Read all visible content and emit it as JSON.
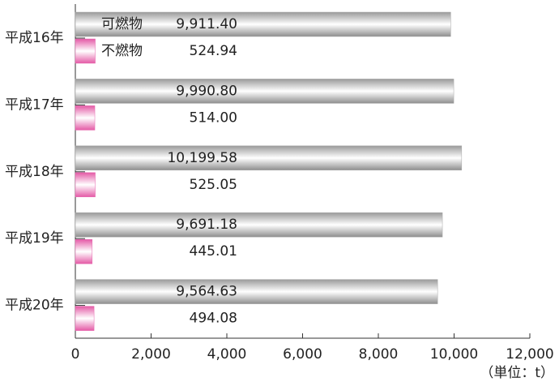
{
  "chart_data": {
    "type": "bar",
    "orientation": "horizontal",
    "categories": [
      "平成16年",
      "平成17年",
      "平成18年",
      "平成19年",
      "平成20年"
    ],
    "series": [
      {
        "name": "可燃物",
        "color": "#a8a8a8",
        "values": [
          9911.4,
          9990.8,
          10199.58,
          9691.18,
          9564.63
        ],
        "value_labels": [
          "9,911.40",
          "9,990.80",
          "10,199.58",
          "9,691.18",
          "9,564.63"
        ]
      },
      {
        "name": "不燃物",
        "color": "#e868b0",
        "values": [
          524.94,
          514.0,
          525.05,
          445.01,
          494.08
        ],
        "value_labels": [
          "524.94",
          "514.00",
          "525.05",
          "445.01",
          "494.08"
        ]
      }
    ],
    "xlim": [
      0,
      12000
    ],
    "xticks": [
      0,
      {
        "value": 2000,
        "label": "2,000"
      },
      {
        "value": 4000,
        "label": "4,000"
      },
      {
        "value": 6000,
        "label": "6,000"
      },
      {
        "value": 8000,
        "label": "8,000"
      },
      {
        "value": 10000,
        "label": "10,000"
      },
      {
        "value": 12000,
        "label": "12,000"
      }
    ],
    "unit_label": "（単位：t）"
  }
}
